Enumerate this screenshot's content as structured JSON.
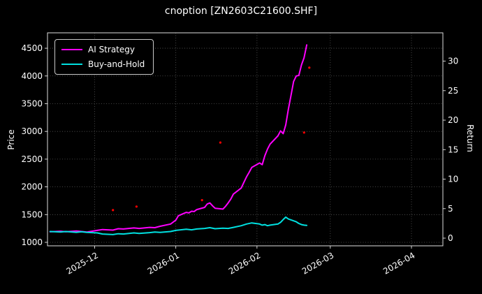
{
  "title": "cnoption [ZN2603C21600.SHF]",
  "axes": {
    "left_label": "Price",
    "right_label": "Return"
  },
  "legend": {
    "items": [
      {
        "label": "AI Strategy",
        "color": "#ff00ff"
      },
      {
        "label": "Buy-and-Hold",
        "color": "#00e0e0"
      }
    ]
  },
  "colors": {
    "background": "#000000",
    "text": "#ffffff",
    "grid": "#5a5a5a",
    "ai_strategy": "#ff00ff",
    "buy_and_hold": "#00e0e0",
    "signal_dots": "#ff0000"
  },
  "chart_data": {
    "type": "line",
    "title": "cnoption [ZN2603C21600.SHF]",
    "xlabel": "",
    "ylabel_left": "Price",
    "ylabel_right": "Return",
    "grid": true,
    "legend_position": "upper-left",
    "x_domain": [
      "2025-11-13",
      "2026-04-13"
    ],
    "price_ylim": [
      937,
      4778
    ],
    "return_ylim": [
      -1.3,
      34.8
    ],
    "price_ticks": [
      1000,
      1500,
      2000,
      2500,
      3000,
      3500,
      4000,
      4500
    ],
    "return_ticks": [
      0,
      5,
      10,
      15,
      20,
      25,
      30
    ],
    "x_tick_dates": [
      "2025-12-01",
      "2026-01-01",
      "2026-02-01",
      "2026-03-01",
      "2026-04-01"
    ],
    "x_tick_labels": [
      "2025-12",
      "2026-01",
      "2026-02",
      "2026-03",
      "2026-04"
    ],
    "series": [
      {
        "name": "AI Strategy",
        "color": "#ff00ff",
        "axis": "price",
        "points": [
          [
            "2025-11-14",
            1190
          ],
          [
            "2025-11-18",
            1200
          ],
          [
            "2025-11-20",
            1190
          ],
          [
            "2025-11-24",
            1205
          ],
          [
            "2025-11-26",
            1195
          ],
          [
            "2025-11-28",
            1185
          ],
          [
            "2025-12-02",
            1215
          ],
          [
            "2025-12-04",
            1230
          ],
          [
            "2025-12-08",
            1220
          ],
          [
            "2025-12-10",
            1245
          ],
          [
            "2025-12-12",
            1240
          ],
          [
            "2025-12-16",
            1260
          ],
          [
            "2025-12-18",
            1250
          ],
          [
            "2025-12-22",
            1270
          ],
          [
            "2025-12-24",
            1265
          ],
          [
            "2025-12-26",
            1290
          ],
          [
            "2025-12-30",
            1330
          ],
          [
            "2026-01-01",
            1400
          ],
          [
            "2026-01-02",
            1480
          ],
          [
            "2026-01-05",
            1540
          ],
          [
            "2026-01-06",
            1530
          ],
          [
            "2026-01-07",
            1560
          ],
          [
            "2026-01-08",
            1555
          ],
          [
            "2026-01-09",
            1590
          ],
          [
            "2026-01-12",
            1630
          ],
          [
            "2026-01-13",
            1690
          ],
          [
            "2026-01-14",
            1710
          ],
          [
            "2026-01-15",
            1660
          ],
          [
            "2026-01-16",
            1615
          ],
          [
            "2026-01-19",
            1600
          ],
          [
            "2026-01-20",
            1650
          ],
          [
            "2026-01-21",
            1710
          ],
          [
            "2026-01-22",
            1780
          ],
          [
            "2026-01-23",
            1870
          ],
          [
            "2026-01-26",
            1980
          ],
          [
            "2026-01-27",
            2080
          ],
          [
            "2026-01-28",
            2180
          ],
          [
            "2026-01-29",
            2260
          ],
          [
            "2026-01-30",
            2350
          ],
          [
            "2026-02-02",
            2430
          ],
          [
            "2026-02-03",
            2400
          ],
          [
            "2026-02-04",
            2560
          ],
          [
            "2026-02-05",
            2680
          ],
          [
            "2026-02-06",
            2770
          ],
          [
            "2026-02-09",
            2920
          ],
          [
            "2026-02-10",
            3010
          ],
          [
            "2026-02-11",
            2960
          ],
          [
            "2026-02-12",
            3120
          ],
          [
            "2026-02-13",
            3400
          ],
          [
            "2026-02-14",
            3650
          ],
          [
            "2026-02-15",
            3900
          ],
          [
            "2026-02-16",
            4000
          ],
          [
            "2026-02-17",
            4010
          ],
          [
            "2026-02-18",
            4200
          ],
          [
            "2026-02-19",
            4330
          ],
          [
            "2026-02-20",
            4560
          ]
        ]
      },
      {
        "name": "Buy-and-Hold",
        "color": "#00e0e0",
        "axis": "price",
        "points": [
          [
            "2025-11-14",
            1195
          ],
          [
            "2025-11-18",
            1185
          ],
          [
            "2025-11-20",
            1195
          ],
          [
            "2025-11-24",
            1180
          ],
          [
            "2025-11-26",
            1190
          ],
          [
            "2025-11-28",
            1180
          ],
          [
            "2025-12-02",
            1170
          ],
          [
            "2025-12-04",
            1150
          ],
          [
            "2025-12-08",
            1140
          ],
          [
            "2025-12-10",
            1155
          ],
          [
            "2025-12-12",
            1150
          ],
          [
            "2025-12-16",
            1170
          ],
          [
            "2025-12-18",
            1160
          ],
          [
            "2025-12-22",
            1175
          ],
          [
            "2025-12-24",
            1185
          ],
          [
            "2025-12-26",
            1180
          ],
          [
            "2025-12-30",
            1195
          ],
          [
            "2026-01-01",
            1215
          ],
          [
            "2026-01-05",
            1235
          ],
          [
            "2026-01-07",
            1225
          ],
          [
            "2026-01-09",
            1240
          ],
          [
            "2026-01-12",
            1250
          ],
          [
            "2026-01-14",
            1265
          ],
          [
            "2026-01-16",
            1245
          ],
          [
            "2026-01-19",
            1255
          ],
          [
            "2026-01-21",
            1250
          ],
          [
            "2026-01-23",
            1270
          ],
          [
            "2026-01-26",
            1300
          ],
          [
            "2026-01-28",
            1330
          ],
          [
            "2026-01-30",
            1350
          ],
          [
            "2026-02-02",
            1330
          ],
          [
            "2026-02-03",
            1310
          ],
          [
            "2026-02-04",
            1320
          ],
          [
            "2026-02-05",
            1300
          ],
          [
            "2026-02-06",
            1310
          ],
          [
            "2026-02-09",
            1330
          ],
          [
            "2026-02-10",
            1360
          ],
          [
            "2026-02-11",
            1410
          ],
          [
            "2026-02-12",
            1455
          ],
          [
            "2026-02-13",
            1420
          ],
          [
            "2026-02-16",
            1370
          ],
          [
            "2026-02-17",
            1340
          ],
          [
            "2026-02-18",
            1320
          ],
          [
            "2026-02-19",
            1310
          ],
          [
            "2026-02-20",
            1305
          ]
        ]
      }
    ],
    "scatter": [
      {
        "name": "signals",
        "color": "#ff0000",
        "points": [
          [
            "2025-12-08",
            1580
          ],
          [
            "2025-12-17",
            1645
          ],
          [
            "2026-01-11",
            1760
          ],
          [
            "2026-01-18",
            2800
          ],
          [
            "2026-02-19",
            2980
          ],
          [
            "2026-02-21",
            4150
          ]
        ]
      }
    ]
  }
}
